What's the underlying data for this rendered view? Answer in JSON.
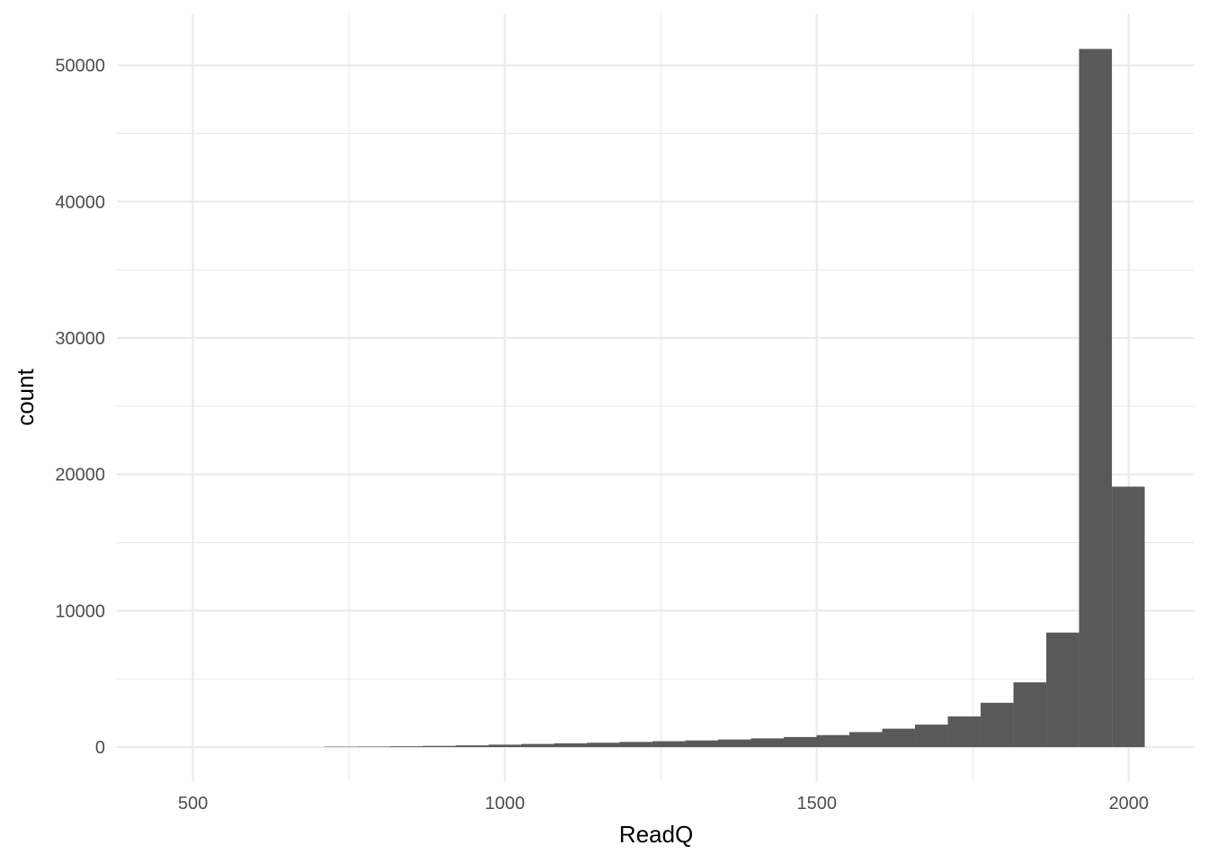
{
  "chart_data": {
    "type": "bar",
    "title": "",
    "xlabel": "ReadQ",
    "ylabel": "count",
    "xlim": [
      378,
      2104
    ],
    "ylim": [
      -2500,
      53800
    ],
    "x_ticks": [
      500,
      1000,
      1500,
      2000
    ],
    "y_ticks": [
      0,
      10000,
      20000,
      30000,
      40000,
      50000
    ],
    "grid": true,
    "bar_color": "#595959",
    "grid_color": "#ebebeb",
    "bin_width": 52.6,
    "bins": [
      {
        "start": 710.6,
        "end": 763.2,
        "count": 30
      },
      {
        "start": 763.2,
        "end": 815.8,
        "count": 40
      },
      {
        "start": 815.8,
        "end": 868.4,
        "count": 60
      },
      {
        "start": 868.4,
        "end": 921.0,
        "count": 90
      },
      {
        "start": 921.0,
        "end": 973.6,
        "count": 130
      },
      {
        "start": 973.6,
        "end": 1026.2,
        "count": 180
      },
      {
        "start": 1026.2,
        "end": 1078.8,
        "count": 230
      },
      {
        "start": 1078.8,
        "end": 1131.4,
        "count": 280
      },
      {
        "start": 1131.4,
        "end": 1184.0,
        "count": 320
      },
      {
        "start": 1184.0,
        "end": 1236.6,
        "count": 380
      },
      {
        "start": 1236.6,
        "end": 1289.2,
        "count": 430
      },
      {
        "start": 1289.2,
        "end": 1341.8,
        "count": 490
      },
      {
        "start": 1341.8,
        "end": 1394.4,
        "count": 560
      },
      {
        "start": 1394.4,
        "end": 1447.0,
        "count": 640
      },
      {
        "start": 1447.0,
        "end": 1499.6,
        "count": 740
      },
      {
        "start": 1499.6,
        "end": 1552.2,
        "count": 880
      },
      {
        "start": 1552.2,
        "end": 1604.8,
        "count": 1100
      },
      {
        "start": 1604.8,
        "end": 1657.4,
        "count": 1350
      },
      {
        "start": 1657.4,
        "end": 1710.0,
        "count": 1650
      },
      {
        "start": 1710.0,
        "end": 1762.6,
        "count": 2250
      },
      {
        "start": 1762.6,
        "end": 1815.2,
        "count": 3250
      },
      {
        "start": 1815.2,
        "end": 1867.8,
        "count": 4750
      },
      {
        "start": 1867.8,
        "end": 1920.4,
        "count": 8400
      },
      {
        "start": 1920.4,
        "end": 1973.0,
        "count": 51200
      },
      {
        "start": 1973.0,
        "end": 2025.6,
        "count": 19100
      }
    ]
  }
}
